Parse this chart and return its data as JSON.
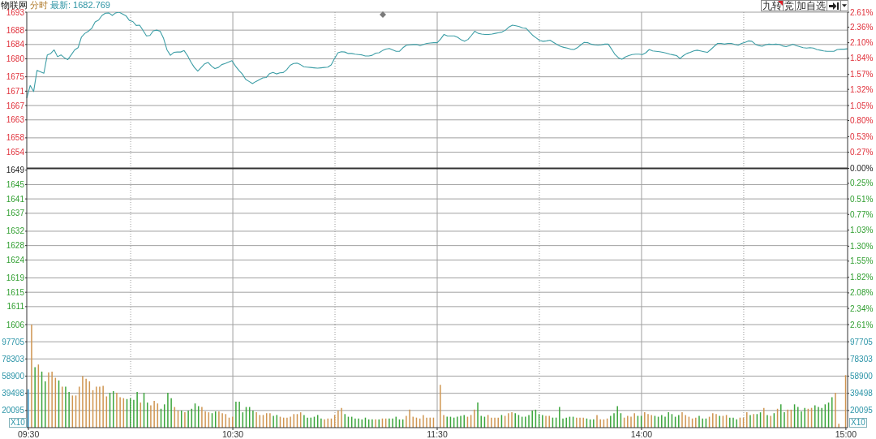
{
  "chart_data": [
    {
      "type": "line",
      "title": "物联网",
      "subtitle": "分时",
      "annotations": [
        "最新: 1682.769",
        "九转",
        "竞",
        "加自选"
      ],
      "color": "#3d9ea6",
      "tick_labels": "y",
      "grid": true,
      "categories": [
        null,
        null,
        null,
        null,
        null,
        null,
        null,
        null,
        null,
        null,
        null,
        null,
        null,
        null,
        null,
        null,
        null,
        null,
        null,
        null,
        null,
        null,
        null,
        null,
        null,
        null,
        null,
        null,
        null,
        null,
        null,
        null,
        null,
        null,
        null,
        null,
        null,
        null,
        null,
        null,
        null,
        null,
        null,
        null,
        null,
        null,
        null,
        null,
        null,
        null,
        null,
        null,
        null,
        null,
        null,
        null,
        null,
        null,
        null,
        null,
        null,
        null,
        null,
        null,
        null,
        null,
        null,
        null,
        null,
        null,
        null,
        null,
        null,
        null,
        null,
        null,
        null,
        null,
        null,
        null,
        null,
        null,
        null,
        null,
        null,
        null,
        null,
        null,
        null,
        null,
        null,
        null,
        null,
        null,
        null,
        null,
        null,
        null,
        null,
        null,
        null,
        null,
        null,
        null,
        null,
        null,
        null,
        null,
        null,
        null,
        null,
        null,
        null,
        null,
        null,
        null,
        null,
        null,
        null,
        null,
        null,
        null,
        null,
        null,
        null,
        null,
        null,
        null,
        null,
        null,
        null,
        null,
        null,
        null,
        null,
        null,
        null,
        null,
        null,
        null,
        null,
        null,
        null,
        null,
        null,
        null,
        null,
        null,
        null,
        null,
        null,
        null,
        null,
        null,
        null,
        null,
        null,
        null,
        null,
        null,
        null,
        null,
        null,
        null,
        null,
        null,
        null,
        null,
        null,
        null,
        null,
        null,
        null,
        null,
        null,
        null,
        null,
        null,
        null,
        null,
        null,
        null,
        null,
        null,
        null,
        null,
        null,
        null,
        null,
        null,
        null,
        null,
        null,
        null,
        null,
        null,
        null,
        null,
        null,
        null,
        null,
        null,
        null,
        null,
        null,
        null,
        null,
        null,
        null,
        null,
        null,
        null,
        null,
        null,
        null,
        null,
        null,
        null,
        null,
        null,
        null,
        null,
        null,
        null,
        null,
        null,
        null,
        null,
        null,
        null,
        null,
        null,
        null,
        null,
        null,
        null,
        null,
        null,
        null,
        null,
        null
      ],
      "values": [
        1669.1,
        1672.6,
        1670.9,
        1676.8,
        1676.4,
        1676.0,
        1681.1,
        1681.5,
        1682.5,
        1680.6,
        1681.1,
        1680.3,
        1679.8,
        1681.1,
        1682.5,
        1683.1,
        1686.1,
        1687.1,
        1687.7,
        1688.5,
        1690.3,
        1690.8,
        1692.1,
        1692.7,
        1692.8,
        1692.1,
        1692.8,
        1693.0,
        1692.5,
        1692.0,
        1690.7,
        1690.4,
        1689.3,
        1689.4,
        1687.9,
        1686.4,
        1686.5,
        1687.8,
        1688.0,
        1687.7,
        1685.7,
        1682.5,
        1681.0,
        1681.8,
        1681.9,
        1681.9,
        1682.3,
        1680.9,
        1679.1,
        1677.6,
        1676.6,
        1677.6,
        1678.6,
        1679.0,
        1678.0,
        1677.3,
        1677.6,
        1678.4,
        1678.7,
        1679.1,
        1679.5,
        1678.0,
        1676.8,
        1675.8,
        1674.3,
        1673.7,
        1673.1,
        1673.7,
        1674.2,
        1674.7,
        1674.8,
        1675.9,
        1676.2,
        1675.8,
        1676.1,
        1676.2,
        1677.0,
        1678.2,
        1678.7,
        1678.8,
        1678.4,
        1677.8,
        1677.7,
        1677.6,
        1677.5,
        1677.4,
        1677.5,
        1677.6,
        1677.7,
        1678.3,
        1680.1,
        1681.7,
        1682.0,
        1681.9,
        1681.5,
        1681.5,
        1681.3,
        1681.2,
        1681.1,
        1680.8,
        1680.8,
        1681.0,
        1681.6,
        1681.7,
        1682.3,
        1682.7,
        1682.9,
        1682.5,
        1682.1,
        1682.1,
        1683.1,
        1683.8,
        1683.9,
        1684.0,
        1684.0,
        1683.7,
        1684.0,
        1684.3,
        1684.4,
        1684.5,
        1684.5,
        1685.5,
        1686.8,
        1686.4,
        1686.4,
        1686.4,
        1686.0,
        1685.3,
        1684.9,
        1685.4,
        1686.5,
        1687.7,
        1687.1,
        1686.9,
        1686.8,
        1686.8,
        1686.9,
        1687.1,
        1687.3,
        1687.5,
        1688.0,
        1688.9,
        1689.4,
        1689.2,
        1689.0,
        1688.6,
        1688.5,
        1687.5,
        1686.5,
        1685.8,
        1685.1,
        1684.9,
        1685.0,
        1685.2,
        1684.6,
        1684.0,
        1683.5,
        1683.2,
        1683.0,
        1682.7,
        1682.6,
        1683.1,
        1683.9,
        1684.6,
        1684.5,
        1684.1,
        1683.9,
        1683.8,
        1683.9,
        1684.1,
        1684.1,
        1682.7,
        1681.2,
        1680.3,
        1679.9,
        1680.5,
        1680.9,
        1681.2,
        1681.3,
        1681.3,
        1681.2,
        1681.7,
        1682.6,
        1682.2,
        1682.1,
        1682.0,
        1681.8,
        1681.6,
        1681.3,
        1681.1,
        1680.9,
        1680.1,
        1680.9,
        1681.5,
        1681.8,
        1682.2,
        1682.4,
        1682.2,
        1682.0,
        1681.8,
        1682.6,
        1683.5,
        1684.3,
        1684.3,
        1684.1,
        1684.3,
        1684.3,
        1684.0,
        1683.8,
        1684.3,
        1684.6,
        1685.0,
        1684.9,
        1684.1,
        1683.7,
        1683.5,
        1683.9,
        1684.1,
        1684.0,
        1684.1,
        1684.0,
        1683.6,
        1683.4,
        1683.7,
        1684.1,
        1683.7,
        1683.4,
        1683.1,
        1683.0,
        1683.1,
        1683.0,
        1682.6,
        1682.4,
        1682.2,
        1682.1,
        1682.1,
        1682.1,
        1682.6,
        1682.7,
        1682.7,
        1682.8
      ],
      "ylim": [
        1606,
        1693
      ],
      "yticks": [
        1606,
        1611,
        1615,
        1619,
        1624,
        1628,
        1632,
        1637,
        1641,
        1645,
        1649,
        1654,
        1658,
        1663,
        1667,
        1671,
        1675,
        1680,
        1684,
        1688,
        1693
      ],
      "y2lim": [
        -2.61,
        2.61
      ],
      "y2ticks": [
        {
          "value": -2.61,
          "label": "2.61%"
        },
        {
          "value": -2.34,
          "label": "2.34%"
        },
        {
          "value": -2.08,
          "label": "2.08%"
        },
        {
          "value": -1.82,
          "label": "1.82%"
        },
        {
          "value": -1.55,
          "label": "1.55%"
        },
        {
          "value": -1.3,
          "label": "1.30%"
        },
        {
          "value": -1.03,
          "label": "1.03%"
        },
        {
          "value": -0.77,
          "label": "0.77%"
        },
        {
          "value": -0.51,
          "label": "0.51%"
        },
        {
          "value": -0.25,
          "label": "0.25%"
        },
        {
          "value": 0,
          "label": "0.00%"
        },
        {
          "value": 0.27,
          "label": "0.27%"
        },
        {
          "value": 0.53,
          "label": "0.53%"
        },
        {
          "value": 0.8,
          "label": "0.80%"
        },
        {
          "value": 1.05,
          "label": "1.05%"
        },
        {
          "value": 1.32,
          "label": "1.32%"
        },
        {
          "value": 1.57,
          "label": "1.57%"
        },
        {
          "value": 1.84,
          "label": "1.84%"
        },
        {
          "value": 2.1,
          "label": "2.10%"
        },
        {
          "value": 2.36,
          "label": "2.36%"
        },
        {
          "value": 2.61,
          "label": "2.61%"
        }
      ],
      "ref_lines": [
        {
          "axis": "y",
          "value": 1649.5,
          "color": "#333333"
        }
      ]
    },
    {
      "type": "bar",
      "ylabel": "X10",
      "y2label": "X10",
      "grid": true,
      "categories": [
        "09:30",
        null,
        null,
        null,
        null,
        null,
        null,
        null,
        null,
        null,
        null,
        null,
        null,
        null,
        null,
        null,
        null,
        null,
        null,
        null,
        null,
        null,
        null,
        null,
        null,
        null,
        null,
        null,
        null,
        null,
        null,
        null,
        null,
        null,
        null,
        null,
        null,
        null,
        null,
        null,
        null,
        null,
        null,
        null,
        null,
        null,
        null,
        null,
        null,
        null,
        null,
        null,
        null,
        null,
        null,
        null,
        null,
        null,
        null,
        null,
        "10:30",
        null,
        null,
        null,
        null,
        null,
        null,
        null,
        null,
        null,
        null,
        null,
        null,
        null,
        null,
        null,
        null,
        null,
        null,
        null,
        null,
        null,
        null,
        null,
        null,
        null,
        null,
        null,
        null,
        null,
        null,
        null,
        null,
        null,
        null,
        null,
        null,
        null,
        null,
        null,
        null,
        null,
        null,
        null,
        null,
        null,
        null,
        null,
        null,
        null,
        null,
        null,
        null,
        null,
        null,
        null,
        null,
        null,
        null,
        null,
        "11:30",
        null,
        null,
        null,
        null,
        null,
        null,
        null,
        null,
        null,
        null,
        null,
        null,
        null,
        null,
        null,
        null,
        null,
        null,
        null,
        null,
        null,
        null,
        null,
        null,
        null,
        null,
        null,
        null,
        null,
        null,
        null,
        null,
        null,
        null,
        null,
        null,
        null,
        null,
        null,
        null,
        null,
        null,
        null,
        null,
        null,
        null,
        null,
        null,
        null,
        null,
        null,
        null,
        null,
        null,
        null,
        null,
        null,
        null,
        null,
        "14:00",
        null,
        null,
        null,
        null,
        null,
        null,
        null,
        null,
        null,
        null,
        null,
        null,
        null,
        null,
        null,
        null,
        null,
        null,
        null,
        null,
        null,
        null,
        null,
        null,
        null,
        null,
        null,
        null,
        null,
        null,
        null,
        null,
        null,
        null,
        null,
        null,
        null,
        null,
        null,
        null,
        null,
        null,
        null,
        null,
        null,
        null,
        null,
        null,
        null,
        null,
        null,
        null,
        null,
        null,
        null,
        null,
        null,
        null,
        null,
        "15:00"
      ],
      "values": [
        44000,
        117000,
        69000,
        72000,
        64000,
        53000,
        63000,
        64000,
        57000,
        54000,
        47000,
        47000,
        41000,
        37000,
        37000,
        47000,
        59000,
        56000,
        53000,
        43000,
        47000,
        47000,
        48000,
        36000,
        40000,
        42000,
        40000,
        35000,
        34000,
        33000,
        34000,
        32000,
        41000,
        29000,
        40000,
        29000,
        26000,
        31000,
        28000,
        22000,
        27000,
        40000,
        34000,
        24000,
        20000,
        20000,
        18000,
        20000,
        22000,
        28000,
        25000,
        24000,
        19000,
        18000,
        17000,
        19000,
        19000,
        17000,
        16000,
        12000,
        13000,
        30000,
        30000,
        18000,
        24000,
        24000,
        20000,
        18000,
        15000,
        15000,
        17000,
        17000,
        14000,
        15000,
        13000,
        12000,
        12000,
        13000,
        16000,
        16000,
        18000,
        15000,
        12000,
        12000,
        13000,
        15000,
        11000,
        10000,
        11000,
        11000,
        15000,
        20000,
        23000,
        16000,
        13000,
        13000,
        11000,
        11000,
        10000,
        12000,
        10000,
        10000,
        10000,
        10000,
        11000,
        11000,
        11000,
        11000,
        13000,
        10000,
        10000,
        14000,
        21000,
        13000,
        12000,
        11000,
        15000,
        12000,
        12000,
        12000,
        null,
        49000,
        15000,
        13000,
        13000,
        12000,
        13000,
        14000,
        15000,
        13000,
        15000,
        21000,
        29000,
        14000,
        13000,
        15000,
        12000,
        12000,
        12000,
        15000,
        14000,
        17000,
        18000,
        17000,
        15000,
        13000,
        13000,
        15000,
        20000,
        21000,
        16000,
        15000,
        14000,
        14000,
        12000,
        12000,
        24000,
        11000,
        12000,
        13000,
        13000,
        12000,
        12000,
        12000,
        11000,
        10000,
        10000,
        15000,
        10000,
        10000,
        11000,
        14000,
        17000,
        25000,
        17000,
        12000,
        14000,
        13000,
        17000,
        14000,
        14000,
        18000,
        16000,
        15000,
        14000,
        13000,
        15000,
        13000,
        18000,
        16000,
        13000,
        15000,
        18000,
        15000,
        13000,
        11000,
        12000,
        14000,
        11000,
        11000,
        13000,
        17000,
        16000,
        14000,
        14000,
        15000,
        12000,
        12000,
        10000,
        12000,
        12000,
        18000,
        15000,
        16000,
        16000,
        18000,
        23000,
        15000,
        14000,
        17000,
        22000,
        27000,
        18000,
        21000,
        21000,
        27000,
        24000,
        19000,
        23000,
        22000,
        23000,
        26000,
        24000,
        23000,
        27000,
        29000,
        35000,
        40000,
        5000,
        null,
        60000
      ],
      "colors": [
        "#2f8fc0",
        "#cf9550",
        "#3ba53b",
        "#cf9550",
        "#3ba53b",
        "#3ba53b",
        "#cf9550",
        "#cf9550",
        "#cf9550",
        "#3ba53b",
        "#cf9550",
        "#3ba53b",
        "#3ba53b",
        "#cf9550",
        "#cf9550",
        "#cf9550",
        "#cf9550",
        "#cf9550",
        "#cf9550",
        "#cf9550",
        "#cf9550",
        "#cf9550",
        "#cf9550",
        "#cf9550",
        "#3ba53b",
        "#3ba53b",
        "#cf9550",
        "#cf9550",
        "#cf9550",
        "#3ba53b",
        "#3ba53b",
        "#3ba53b",
        "#3ba53b",
        "#cf9550",
        "#3ba53b",
        "#3ba53b",
        "#cf9550",
        "#cf9550",
        "#cf9550",
        "#3ba53b",
        "#3ba53b",
        "#3ba53b",
        "#3ba53b",
        "#cf9550",
        "#cf9550",
        "#3ba53b",
        "#cf9550",
        "#3ba53b",
        "#3ba53b",
        "#3ba53b",
        "#3ba53b",
        "#cf9550",
        "#cf9550",
        "#cf9550",
        "#3ba53b",
        "#3ba53b",
        "#cf9550",
        "#cf9550",
        "#cf9550",
        "#cf9550",
        "#cf9550",
        "#3ba53b",
        "#3ba53b",
        "#3ba53b",
        "#3ba53b",
        "#3ba53b",
        "#3ba53b",
        "#cf9550",
        "#cf9550",
        "#cf9550",
        "#cf9550",
        "#cf9550",
        "#3ba53b",
        "#3ba53b",
        "#cf9550",
        "#cf9550",
        "#cf9550",
        "#cf9550",
        "#cf9550",
        "#cf9550",
        "#cf9550",
        "#3ba53b",
        "#3ba53b",
        "#3ba53b",
        "#3ba53b",
        "#3ba53b",
        "#3ba53b",
        "#cf9550",
        "#cf9550",
        "#cf9550",
        "#cf9550",
        "#cf9550",
        "#cf9550",
        "#3ba53b",
        "#3ba53b",
        "#3ba53b",
        "#3ba53b",
        "#3ba53b",
        "#3ba53b",
        "#3ba53b",
        "#3ba53b",
        "#3ba53b",
        "#cf9550",
        "#3ba53b",
        "#cf9550",
        "#cf9550",
        "#3ba53b",
        "#3ba53b",
        "#3ba53b",
        "#3ba53b",
        "#3ba53b",
        "#cf9550",
        "#cf9550",
        "#cf9550",
        "#cf9550",
        "#cf9550",
        "#cf9550",
        "#cf9550",
        "#cf9550",
        "#cf9550",
        "#cf9550",
        "#cf9550",
        "#cf9550",
        "#3ba53b",
        "#3ba53b",
        "#3ba53b",
        "#3ba53b",
        "#3ba53b",
        "#3ba53b",
        "#cf9550",
        "#cf9550",
        "#cf9550",
        "#3ba53b",
        "#3ba53b",
        "#3ba53b",
        "#cf9550",
        "#cf9550",
        "#cf9550",
        "#cf9550",
        "#3ba53b",
        "#cf9550",
        "#cf9550",
        "#cf9550",
        "#3ba53b",
        "#3ba53b",
        "#3ba53b",
        "#3ba53b",
        "#3ba53b",
        "#3ba53b",
        "#3ba53b",
        "#3ba53b",
        "#3ba53b",
        "#cf9550",
        "#cf9550",
        "#3ba53b",
        "#3ba53b",
        "#3ba53b",
        "#3ba53b",
        "#3ba53b",
        "#3ba53b",
        "#3ba53b",
        "#cf9550",
        "#cf9550",
        "#cf9550",
        "#3ba53b",
        "#3ba53b",
        "#3ba53b",
        "#cf9550",
        "#cf9550",
        "#cf9550",
        "#cf9550",
        "#3ba53b",
        "#3ba53b",
        "#3ba53b",
        "#3ba53b",
        "#cf9550",
        "#cf9550",
        "#cf9550",
        "#cf9550",
        "#3ba53b",
        "#3ba53b",
        "#cf9550",
        "#cf9550",
        "#cf9550",
        "#3ba53b",
        "#3ba53b",
        "#3ba53b",
        "#3ba53b",
        "#3ba53b",
        "#3ba53b",
        "#3ba53b",
        "#3ba53b",
        "#cf9550",
        "#cf9550",
        "#cf9550",
        "#cf9550",
        "#cf9550",
        "#3ba53b",
        "#3ba53b",
        "#3ba53b",
        "#cf9550",
        "#cf9550",
        "#cf9550",
        "#3ba53b",
        "#cf9550",
        "#cf9550",
        "#3ba53b",
        "#3ba53b",
        "#3ba53b",
        "#cf9550",
        "#cf9550",
        "#cf9550",
        "#3ba53b",
        "#cf9550",
        "#3ba53b",
        "#3ba53b",
        "#cf9550",
        "#3ba53b",
        "#cf9550",
        "#3ba53b",
        "#cf9550",
        "#3ba53b",
        "#3ba53b",
        "#cf9550",
        "#cf9550",
        "#3ba53b",
        "#3ba53b",
        "#3ba53b",
        "#3ba53b",
        "#cf9550",
        "#cf9550",
        "#3ba53b",
        "#3ba53b",
        "#3ba53b",
        "#3ba53b",
        "#3ba53b",
        "#3ba53b",
        "#cf9550",
        "#cf9550",
        "#cf9550",
        "#cf9550"
      ],
      "ylim": [
        693,
        117108
      ],
      "yticks": [
        20095,
        39498,
        58900,
        78303,
        97705
      ],
      "y2lim": [
        693,
        117108
      ],
      "y2ticks": [
        20095,
        39498,
        58900,
        78303,
        97705
      ]
    }
  ]
}
